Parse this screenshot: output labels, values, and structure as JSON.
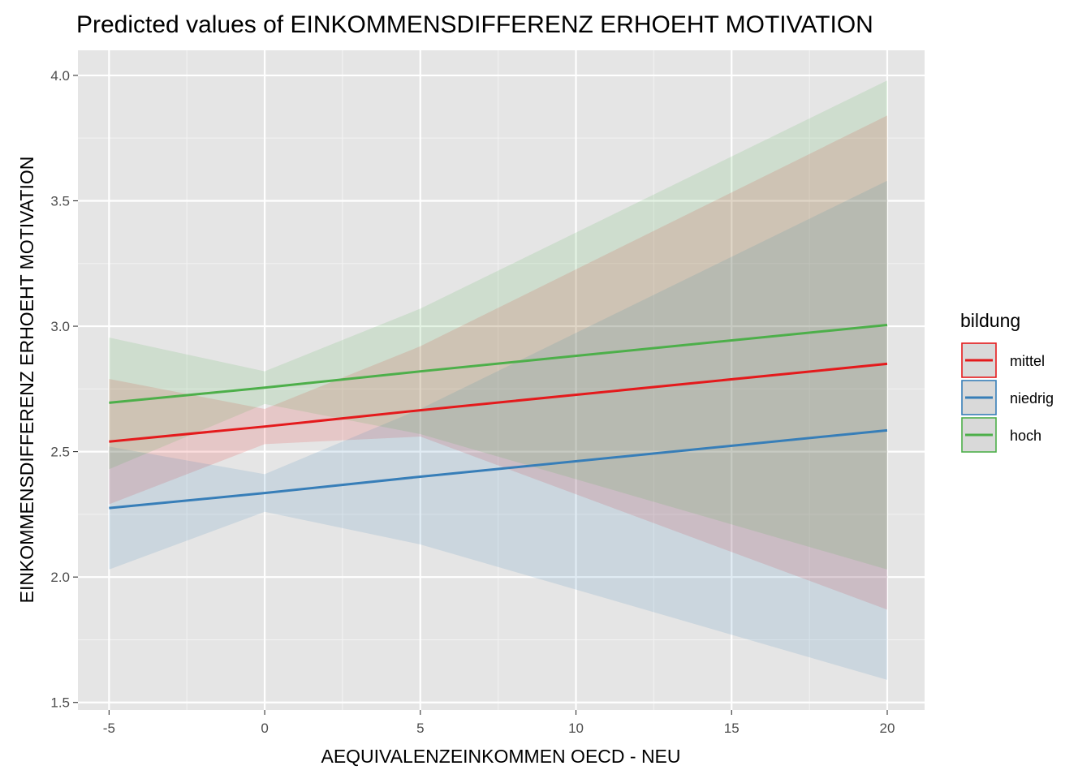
{
  "chart_data": {
    "type": "line",
    "title": "Predicted values of EINKOMMENSDIFFERENZ ERHOEHT MOTIVATION",
    "xlabel": "AEQUIVALENZEINKOMMEN OECD - NEU",
    "ylabel": "EINKOMMENSDIFFERENZ ERHOEHT MOTIVATION",
    "xlim": [
      -6,
      21.2
    ],
    "ylim": [
      1.47,
      4.1
    ],
    "x_ticks": [
      -5,
      0,
      5,
      10,
      15,
      20
    ],
    "x_tick_labels": [
      "-5",
      "0",
      "5",
      "10",
      "15",
      "20"
    ],
    "y_ticks": [
      1.5,
      2.0,
      2.5,
      3.0,
      3.5,
      4.0
    ],
    "y_tick_labels": [
      "1.5",
      "2.0",
      "2.5",
      "3.0",
      "3.5",
      "4.0"
    ],
    "grid": true,
    "legend": {
      "title": "bildung",
      "position": "right"
    },
    "series": [
      {
        "name": "mittel",
        "color": "#E41A1C",
        "x": [
          -5,
          0,
          5,
          20
        ],
        "y": [
          2.54,
          2.6,
          2.665,
          2.85
        ],
        "lower": [
          2.29,
          2.53,
          2.56,
          1.87
        ],
        "upper": [
          2.79,
          2.67,
          2.92,
          3.84
        ]
      },
      {
        "name": "niedrig",
        "color": "#377EB8",
        "x": [
          -5,
          0,
          5,
          20
        ],
        "y": [
          2.275,
          2.335,
          2.4,
          2.585
        ],
        "lower": [
          2.03,
          2.26,
          2.13,
          1.59
        ],
        "upper": [
          2.52,
          2.41,
          2.67,
          3.58
        ]
      },
      {
        "name": "hoch",
        "color": "#4DAF4A",
        "x": [
          -5,
          0,
          5,
          20
        ],
        "y": [
          2.695,
          2.755,
          2.82,
          3.005
        ],
        "lower": [
          2.43,
          2.69,
          2.57,
          2.03
        ],
        "upper": [
          2.955,
          2.82,
          3.07,
          3.98
        ]
      }
    ]
  }
}
